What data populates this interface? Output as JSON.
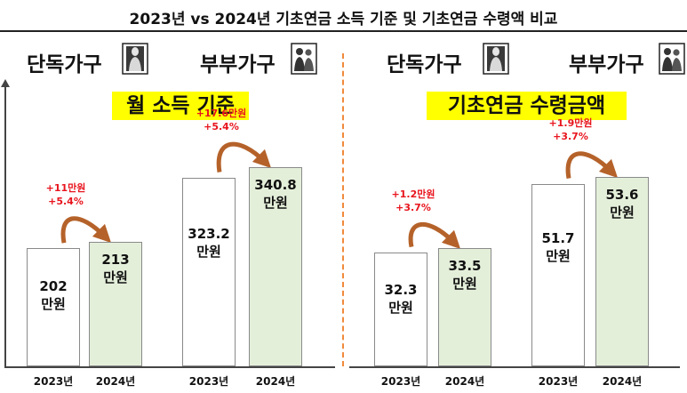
{
  "title": "2023년 vs 2024년 기초연금 소득 기준 및 기초연금 수령액 비교",
  "left_panel": {
    "single_label": "단독가구",
    "couple_label": "부부가구",
    "banner": "월 소득 기준"
  },
  "right_panel": {
    "single_label": "단독가구",
    "couple_label": "부부가구",
    "banner": "기초연금 수령금액"
  },
  "colors": {
    "banner_bg": "#ffff00",
    "bar_2023": "#ffffff",
    "bar_2024": "#e4efda",
    "annotation": "#e8141d",
    "arrow": "#b5622a",
    "divider": "#f08a3c"
  },
  "chart_data": [
    {
      "type": "bar",
      "title": "월 소득 기준",
      "unit": "만원",
      "groups": [
        {
          "name": "단독가구",
          "categories": [
            "2023년",
            "2024년"
          ],
          "values": [
            202,
            213
          ],
          "labels": [
            "202",
            "213"
          ],
          "change": [
            "+11만원",
            "+5.4%"
          ]
        },
        {
          "name": "부부가구",
          "categories": [
            "2023년",
            "2024년"
          ],
          "values": [
            323.2,
            340.8
          ],
          "labels": [
            "323.2",
            "340.8"
          ],
          "change": [
            "+17.6만원",
            "+5.4%"
          ]
        }
      ]
    },
    {
      "type": "bar",
      "title": "기초연금 수령금액",
      "unit": "만원",
      "groups": [
        {
          "name": "단독가구",
          "categories": [
            "2023년",
            "2024년"
          ],
          "values": [
            32.3,
            33.5
          ],
          "labels": [
            "32.3",
            "33.5"
          ],
          "change": [
            "+1.2만원",
            "+3.7%"
          ]
        },
        {
          "name": "부부가구",
          "categories": [
            "2023년",
            "2024년"
          ],
          "values": [
            51.7,
            53.6
          ],
          "labels": [
            "51.7",
            "53.6"
          ],
          "change": [
            "+1.9만원",
            "+3.7%"
          ]
        }
      ]
    }
  ]
}
